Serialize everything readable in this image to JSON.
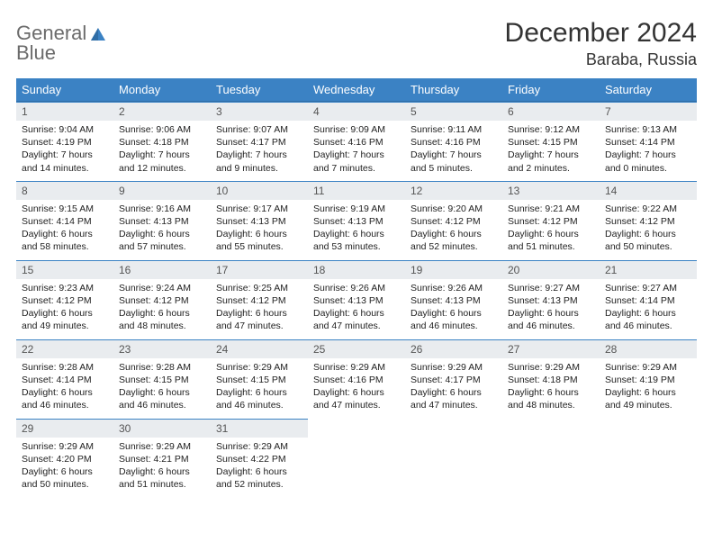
{
  "logo": {
    "line1": "General",
    "line2": "Blue"
  },
  "title": "December 2024",
  "location": "Baraba, Russia",
  "colors": {
    "header_bg": "#3b82c4",
    "header_text": "#ffffff",
    "daynum_bg": "#e9ecef",
    "daynum_border": "#3b82c4",
    "logo_gray": "#6b6b6b",
    "logo_blue": "#3b82c4"
  },
  "weekdays": [
    "Sunday",
    "Monday",
    "Tuesday",
    "Wednesday",
    "Thursday",
    "Friday",
    "Saturday"
  ],
  "weeks": [
    [
      {
        "day": "1",
        "sunrise": "Sunrise: 9:04 AM",
        "sunset": "Sunset: 4:19 PM",
        "daylight1": "Daylight: 7 hours",
        "daylight2": "and 14 minutes."
      },
      {
        "day": "2",
        "sunrise": "Sunrise: 9:06 AM",
        "sunset": "Sunset: 4:18 PM",
        "daylight1": "Daylight: 7 hours",
        "daylight2": "and 12 minutes."
      },
      {
        "day": "3",
        "sunrise": "Sunrise: 9:07 AM",
        "sunset": "Sunset: 4:17 PM",
        "daylight1": "Daylight: 7 hours",
        "daylight2": "and 9 minutes."
      },
      {
        "day": "4",
        "sunrise": "Sunrise: 9:09 AM",
        "sunset": "Sunset: 4:16 PM",
        "daylight1": "Daylight: 7 hours",
        "daylight2": "and 7 minutes."
      },
      {
        "day": "5",
        "sunrise": "Sunrise: 9:11 AM",
        "sunset": "Sunset: 4:16 PM",
        "daylight1": "Daylight: 7 hours",
        "daylight2": "and 5 minutes."
      },
      {
        "day": "6",
        "sunrise": "Sunrise: 9:12 AM",
        "sunset": "Sunset: 4:15 PM",
        "daylight1": "Daylight: 7 hours",
        "daylight2": "and 2 minutes."
      },
      {
        "day": "7",
        "sunrise": "Sunrise: 9:13 AM",
        "sunset": "Sunset: 4:14 PM",
        "daylight1": "Daylight: 7 hours",
        "daylight2": "and 0 minutes."
      }
    ],
    [
      {
        "day": "8",
        "sunrise": "Sunrise: 9:15 AM",
        "sunset": "Sunset: 4:14 PM",
        "daylight1": "Daylight: 6 hours",
        "daylight2": "and 58 minutes."
      },
      {
        "day": "9",
        "sunrise": "Sunrise: 9:16 AM",
        "sunset": "Sunset: 4:13 PM",
        "daylight1": "Daylight: 6 hours",
        "daylight2": "and 57 minutes."
      },
      {
        "day": "10",
        "sunrise": "Sunrise: 9:17 AM",
        "sunset": "Sunset: 4:13 PM",
        "daylight1": "Daylight: 6 hours",
        "daylight2": "and 55 minutes."
      },
      {
        "day": "11",
        "sunrise": "Sunrise: 9:19 AM",
        "sunset": "Sunset: 4:13 PM",
        "daylight1": "Daylight: 6 hours",
        "daylight2": "and 53 minutes."
      },
      {
        "day": "12",
        "sunrise": "Sunrise: 9:20 AM",
        "sunset": "Sunset: 4:12 PM",
        "daylight1": "Daylight: 6 hours",
        "daylight2": "and 52 minutes."
      },
      {
        "day": "13",
        "sunrise": "Sunrise: 9:21 AM",
        "sunset": "Sunset: 4:12 PM",
        "daylight1": "Daylight: 6 hours",
        "daylight2": "and 51 minutes."
      },
      {
        "day": "14",
        "sunrise": "Sunrise: 9:22 AM",
        "sunset": "Sunset: 4:12 PM",
        "daylight1": "Daylight: 6 hours",
        "daylight2": "and 50 minutes."
      }
    ],
    [
      {
        "day": "15",
        "sunrise": "Sunrise: 9:23 AM",
        "sunset": "Sunset: 4:12 PM",
        "daylight1": "Daylight: 6 hours",
        "daylight2": "and 49 minutes."
      },
      {
        "day": "16",
        "sunrise": "Sunrise: 9:24 AM",
        "sunset": "Sunset: 4:12 PM",
        "daylight1": "Daylight: 6 hours",
        "daylight2": "and 48 minutes."
      },
      {
        "day": "17",
        "sunrise": "Sunrise: 9:25 AM",
        "sunset": "Sunset: 4:12 PM",
        "daylight1": "Daylight: 6 hours",
        "daylight2": "and 47 minutes."
      },
      {
        "day": "18",
        "sunrise": "Sunrise: 9:26 AM",
        "sunset": "Sunset: 4:13 PM",
        "daylight1": "Daylight: 6 hours",
        "daylight2": "and 47 minutes."
      },
      {
        "day": "19",
        "sunrise": "Sunrise: 9:26 AM",
        "sunset": "Sunset: 4:13 PM",
        "daylight1": "Daylight: 6 hours",
        "daylight2": "and 46 minutes."
      },
      {
        "day": "20",
        "sunrise": "Sunrise: 9:27 AM",
        "sunset": "Sunset: 4:13 PM",
        "daylight1": "Daylight: 6 hours",
        "daylight2": "and 46 minutes."
      },
      {
        "day": "21",
        "sunrise": "Sunrise: 9:27 AM",
        "sunset": "Sunset: 4:14 PM",
        "daylight1": "Daylight: 6 hours",
        "daylight2": "and 46 minutes."
      }
    ],
    [
      {
        "day": "22",
        "sunrise": "Sunrise: 9:28 AM",
        "sunset": "Sunset: 4:14 PM",
        "daylight1": "Daylight: 6 hours",
        "daylight2": "and 46 minutes."
      },
      {
        "day": "23",
        "sunrise": "Sunrise: 9:28 AM",
        "sunset": "Sunset: 4:15 PM",
        "daylight1": "Daylight: 6 hours",
        "daylight2": "and 46 minutes."
      },
      {
        "day": "24",
        "sunrise": "Sunrise: 9:29 AM",
        "sunset": "Sunset: 4:15 PM",
        "daylight1": "Daylight: 6 hours",
        "daylight2": "and 46 minutes."
      },
      {
        "day": "25",
        "sunrise": "Sunrise: 9:29 AM",
        "sunset": "Sunset: 4:16 PM",
        "daylight1": "Daylight: 6 hours",
        "daylight2": "and 47 minutes."
      },
      {
        "day": "26",
        "sunrise": "Sunrise: 9:29 AM",
        "sunset": "Sunset: 4:17 PM",
        "daylight1": "Daylight: 6 hours",
        "daylight2": "and 47 minutes."
      },
      {
        "day": "27",
        "sunrise": "Sunrise: 9:29 AM",
        "sunset": "Sunset: 4:18 PM",
        "daylight1": "Daylight: 6 hours",
        "daylight2": "and 48 minutes."
      },
      {
        "day": "28",
        "sunrise": "Sunrise: 9:29 AM",
        "sunset": "Sunset: 4:19 PM",
        "daylight1": "Daylight: 6 hours",
        "daylight2": "and 49 minutes."
      }
    ],
    [
      {
        "day": "29",
        "sunrise": "Sunrise: 9:29 AM",
        "sunset": "Sunset: 4:20 PM",
        "daylight1": "Daylight: 6 hours",
        "daylight2": "and 50 minutes."
      },
      {
        "day": "30",
        "sunrise": "Sunrise: 9:29 AM",
        "sunset": "Sunset: 4:21 PM",
        "daylight1": "Daylight: 6 hours",
        "daylight2": "and 51 minutes."
      },
      {
        "day": "31",
        "sunrise": "Sunrise: 9:29 AM",
        "sunset": "Sunset: 4:22 PM",
        "daylight1": "Daylight: 6 hours",
        "daylight2": "and 52 minutes."
      },
      null,
      null,
      null,
      null
    ]
  ]
}
